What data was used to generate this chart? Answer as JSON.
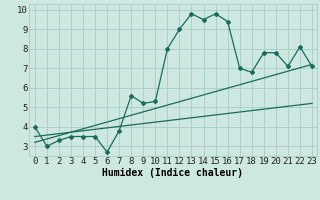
{
  "xlabel": "Humidex (Indice chaleur)",
  "ylabel": "",
  "bg_color": "#cde8e0",
  "grid_color": "#aaccc4",
  "line_color": "#1a6b5a",
  "xlim": [
    -0.5,
    23.4
  ],
  "ylim": [
    2.5,
    10.3
  ],
  "xticks": [
    0,
    1,
    2,
    3,
    4,
    5,
    6,
    7,
    8,
    9,
    10,
    11,
    12,
    13,
    14,
    15,
    16,
    17,
    18,
    19,
    20,
    21,
    22,
    23
  ],
  "yticks": [
    3,
    4,
    5,
    6,
    7,
    8,
    9,
    10
  ],
  "main_x": [
    0,
    1,
    2,
    3,
    4,
    5,
    6,
    7,
    8,
    9,
    10,
    11,
    12,
    13,
    14,
    15,
    16,
    17,
    18,
    19,
    20,
    21,
    22,
    23
  ],
  "main_y": [
    4.0,
    3.0,
    3.3,
    3.5,
    3.5,
    3.5,
    2.7,
    3.8,
    5.6,
    5.2,
    5.3,
    8.0,
    9.0,
    9.8,
    9.5,
    9.8,
    9.4,
    7.0,
    6.8,
    7.8,
    7.8,
    7.1,
    8.1,
    7.1
  ],
  "trend1_x": [
    0,
    23
  ],
  "trend1_y": [
    3.5,
    5.2
  ],
  "trend2_x": [
    0,
    23
  ],
  "trend2_y": [
    3.2,
    7.2
  ],
  "font_size_xlabel": 7,
  "font_size_ticks": 6.5
}
